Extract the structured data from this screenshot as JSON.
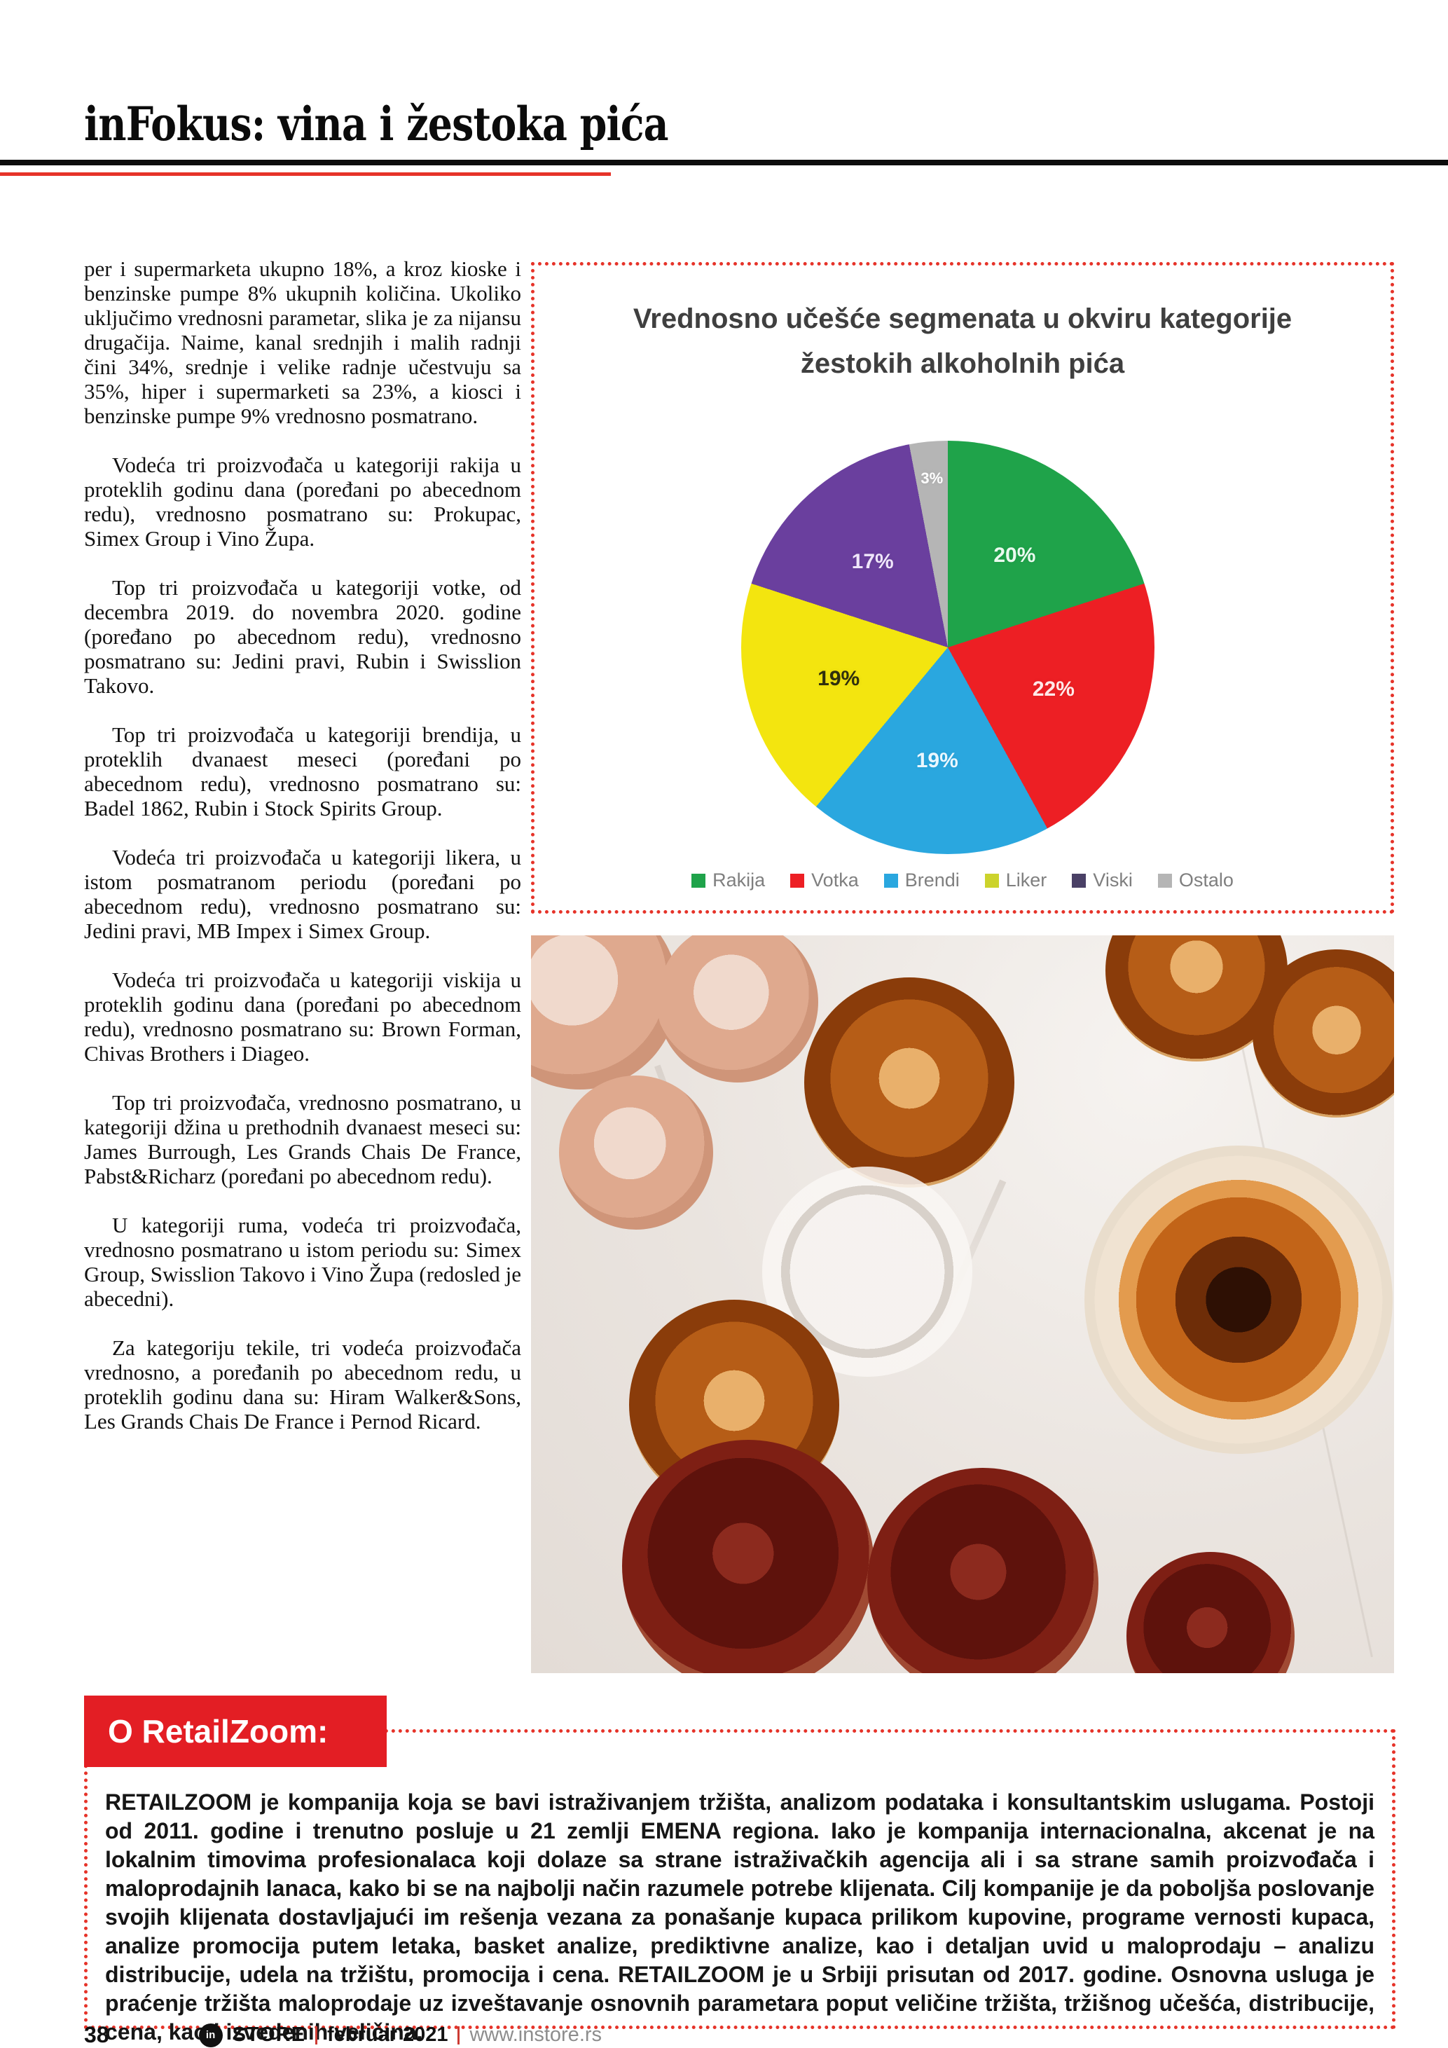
{
  "header": {
    "title": "inFokus: vina i žestoka pića"
  },
  "article": {
    "paragraphs": [
      "per i supermarketa ukupno 18%, a kroz kioske i benzinske pumpe 8% ukupnih količina. Ukoliko uključimo vrednosni parametar, slika je za nijansu drugačija. Naime, kanal srednjih i malih radnji čini 34%, srednje i velike radnje učestvuju sa 35%, hiper i supermarketi sa 23%, a kiosci i benzinske pumpe 9% vrednosno posmatrano.",
      "Vodeća tri proizvođača u kategoriji rakija u proteklih godinu dana (poređani po abecednom redu), vrednosno posmatrano su: Prokupac, Simex Group i Vino Župa.",
      "Top tri proizvođača u kategoriji votke, od decembra 2019. do novembra 2020. godine (poređano po abecednom redu), vrednosno posmatrano su: Jedini pravi, Rubin i Swisslion Takovo.",
      "Top tri proizvođača u kategoriji brendija, u proteklih dvanaest meseci (poređani po abecednom redu), vrednosno posmatrano su: Badel 1862, Rubin i Stock Spirits Group.",
      "Vodeća tri proizvođača u kategoriji likera, u istom posmatranom periodu (poređani po abecednom redu), vrednosno posmatrano su: Jedini pravi, MB Impex i Simex Group.",
      "Vodeća tri proizvođača u kategoriji viskija u proteklih godinu dana (poređani po abecednom redu), vrednosno posmatrano su: Brown Forman, Chivas Brothers i Diageo.",
      "Top tri proizvođača, vrednosno posmatrano, u kategoriji džina u prethodnih dvanaest meseci su: James Burrough, Les Grands Chais De France, Pabst&Richarz (poređani po abecednom redu).",
      "U kategoriji ruma, vodeća tri proizvođača, vrednosno posmatrano u istom periodu su: Simex Group, Swisslion Takovo i Vino Župa (redosled je abecedni).",
      "Za kategoriju tekile, tri vodeća proizvođača vrednosno, a poređanih po abecednom redu, u proteklih godinu dana su: Hiram Walker&Sons, Les Grands Chais De France i Pernod Ricard."
    ]
  },
  "chart": {
    "title_line1": "Vrednosno učešće segmenata u okviru kategorije",
    "title_line2": "žestokih alkoholnih pića"
  },
  "chart_data": {
    "type": "pie",
    "title": "Vrednosno učešće segmenata u okviru kategorije žestokih alkoholnih pića",
    "labels": [
      "Rakija",
      "Votka",
      "Brendi",
      "Liker",
      "Viski",
      "Ostalo"
    ],
    "values": [
      20,
      22,
      19,
      19,
      17,
      3
    ],
    "data_labels": [
      "20%",
      "22%",
      "19%",
      "19%",
      "17%",
      "3%"
    ],
    "colors": [
      "#1fa34a",
      "#ed1f24",
      "#2aa7df",
      "#f3e50f",
      "#6a3f9e",
      "#b5b5b5"
    ],
    "legend_colors": [
      "#1fa34a",
      "#ed1f24",
      "#2aa7df",
      "#ccd32c",
      "#4a4066",
      "#b5b5b5"
    ],
    "label_colors": [
      "#eafaef",
      "#ffe9e9",
      "#eaf7ff",
      "#2f2f0d",
      "#efe6fa",
      "#ffffff"
    ],
    "start_angle_deg": 0,
    "direction": "clockwise",
    "legend_position": "bottom"
  },
  "about": {
    "heading": "O RetailZoom:",
    "body": "RETAILZOOM je kompanija koja se bavi istraživanjem tržišta, analizom podataka i konsultantskim uslugama. Postoji od 2011. godine i trenutno posluje u 21 zemlji EMENA regiona. Iako je kompanija internacionalna, akcenat je na lokalnim timovima profesionalaca koji dolaze sa strane istraživačkih agencija ali i sa strane samih proizvođača i maloprodajnih lanaca, kako bi se na najbolji način razumele potrebe klijenata. Cilj kompanije je da poboljša poslovanje svojih klijenata dostavljajući im rešenja vezana za ponašanje kupaca prilikom kupovine, programe vernosti kupaca, analize promocija putem letaka, basket analize, prediktivne analize, kao i detaljan uvid u maloprodaju – analizu distribucije, udela na tržištu, promocija i cena. RETAILZOOM je u Srbiji prisutan od 2017. godine. Osnovna usluga je praćenje tržišta maloprodaje uz izveštavanje osnovnih parametara poput veličine tržišta, tržišnog učešća, distribucije, cena, kao i izvedenih veličina."
  },
  "footer": {
    "page_number": "38",
    "logo_text": "in",
    "magazine": "STORE",
    "issue": "februar 2021",
    "website": "www.instore.rs"
  },
  "accent_colors": {
    "red": "#e31e24",
    "dotted_border": "#e63329"
  }
}
